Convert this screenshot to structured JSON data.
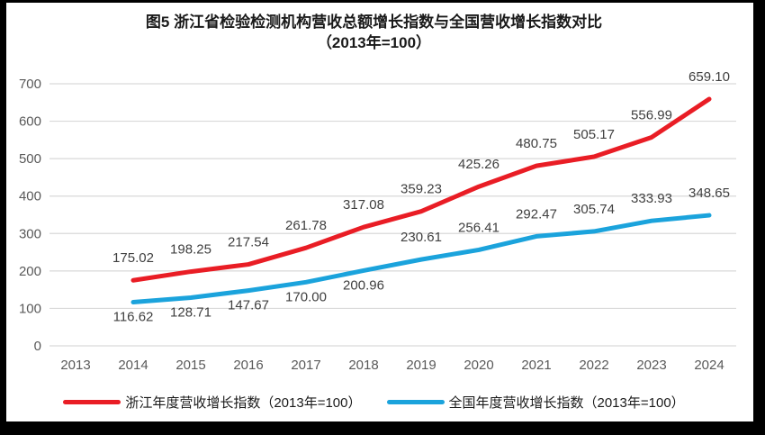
{
  "title": {
    "line1": "图5  浙江省检验检测机构营收总额增长指数与全国营收增长指数对比",
    "line2": "（2013年=100）"
  },
  "colors": {
    "zhejiang_line": "#E91D25",
    "national_line": "#1BA3DC",
    "gridline": "#D9D9D9",
    "axis_text": "#595959",
    "data_label_text": "#3F3F3F",
    "frame": "#000000",
    "background": "#FFFFFF"
  },
  "chart_data": {
    "type": "line",
    "categories": [
      "2013",
      "2014",
      "2015",
      "2016",
      "2017",
      "2018",
      "2019",
      "2020",
      "2021",
      "2022",
      "2023",
      "2024"
    ],
    "series": [
      {
        "name": "浙江年度营收增长指数（2013年=100）",
        "color": "#E91D25",
        "values": [
          null,
          175.02,
          198.25,
          217.54,
          261.78,
          317.08,
          359.23,
          425.26,
          480.75,
          505.17,
          556.99,
          659.1
        ]
      },
      {
        "name": "全国年度营收增长指数（2013年=100）",
        "color": "#1BA3DC",
        "values": [
          null,
          116.62,
          128.71,
          147.67,
          170.0,
          200.96,
          230.61,
          256.41,
          292.47,
          305.74,
          333.93,
          348.65
        ]
      }
    ],
    "ylim": [
      0,
      700
    ],
    "yticks": [
      0,
      100,
      200,
      300,
      400,
      500,
      600,
      700
    ],
    "grid": true,
    "legend_position": "bottom",
    "data_labels": true,
    "data_label_decimals": 2
  }
}
